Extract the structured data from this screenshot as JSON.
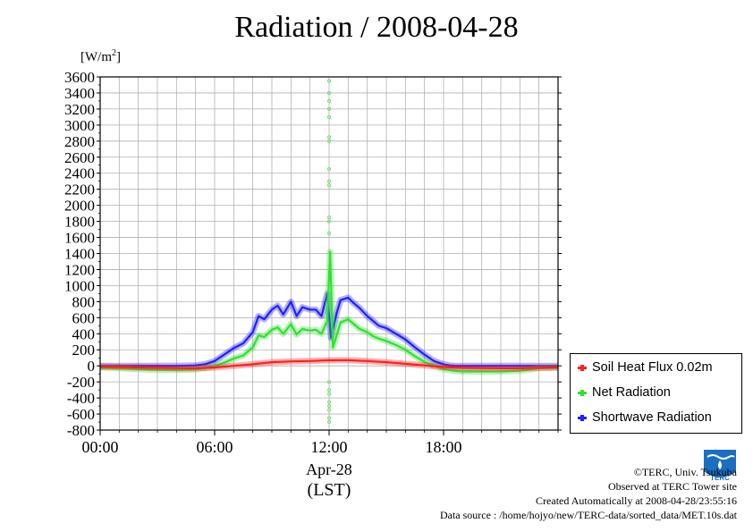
{
  "title": "Radiation / 2008-04-28",
  "unit": {
    "base": "[W/m",
    "sup": "2",
    "close": "]"
  },
  "xaxis": {
    "date_label": "Apr-28",
    "tz_label": "(LST)"
  },
  "legend": [
    {
      "label": "Soil Heat Flux 0.02m",
      "color": "#ff2020"
    },
    {
      "label": "Net Radiation",
      "color": "#30e030"
    },
    {
      "label": "Shortwave Radiation",
      "color": "#2020ff"
    }
  ],
  "footer": {
    "copyright": "©TERC, Univ. Tsukuba",
    "site": "Observed at TERC Tower site",
    "created": "Created Automatically at 2008-04-28/23:55:16",
    "source": "Data source : /home/hojyo/new/TERC-data/sorted_data/MET.10s.dat"
  },
  "logo": {
    "text": "TERC",
    "icon": "terc-logo-icon"
  },
  "chart_data": {
    "type": "line",
    "title": "Radiation / 2008-04-28",
    "ylabel": "[W/m2]",
    "xlabel": "Apr-28 (LST)",
    "ylim": [
      -800,
      3600
    ],
    "xlim": [
      0,
      24
    ],
    "yticks": [
      -800,
      -600,
      -400,
      -200,
      0,
      200,
      400,
      600,
      800,
      1000,
      1200,
      1400,
      1600,
      1800,
      2000,
      2200,
      2400,
      2600,
      2800,
      3000,
      3200,
      3400,
      3600
    ],
    "xticks": [
      {
        "x": 0,
        "label": "00:00"
      },
      {
        "x": 6,
        "label": "06:00"
      },
      {
        "x": 12,
        "label": "12:00"
      },
      {
        "x": 18,
        "label": "18:00"
      }
    ],
    "grid": true,
    "legend_position": "right-bottom",
    "series": [
      {
        "name": "Shortwave Radiation",
        "color": "#2020ff",
        "x": [
          0,
          1,
          2,
          3,
          4,
          5,
          5.5,
          6,
          6.5,
          7,
          7.5,
          8,
          8.3,
          8.6,
          9,
          9.3,
          9.6,
          10,
          10.3,
          10.6,
          11,
          11.3,
          11.6,
          11.9,
          12.1,
          12.4,
          12.6,
          13,
          13.3,
          13.6,
          14,
          14.3,
          14.6,
          15,
          15.5,
          16,
          16.5,
          17,
          17.5,
          18,
          18.3,
          18.6,
          19,
          20,
          21,
          22,
          23,
          24
        ],
        "y": [
          0,
          0,
          0,
          0,
          0,
          5,
          20,
          60,
          140,
          220,
          280,
          420,
          620,
          580,
          700,
          750,
          640,
          800,
          620,
          730,
          700,
          700,
          620,
          900,
          350,
          660,
          820,
          850,
          780,
          720,
          620,
          560,
          500,
          470,
          400,
          330,
          230,
          140,
          60,
          20,
          5,
          0,
          0,
          0,
          0,
          0,
          0,
          0
        ]
      },
      {
        "name": "Net Radiation",
        "color": "#30e030",
        "x": [
          0,
          1,
          2,
          3,
          4,
          5,
          5.5,
          6,
          6.5,
          7,
          7.5,
          8,
          8.3,
          8.6,
          9,
          9.3,
          9.6,
          10,
          10.3,
          10.6,
          11,
          11.3,
          11.6,
          11.9,
          12.05,
          12.2,
          12.6,
          13,
          13.3,
          13.6,
          14,
          14.3,
          14.6,
          15,
          15.5,
          16,
          16.5,
          17,
          17.5,
          18,
          18.5,
          19,
          20,
          21,
          22,
          23,
          24
        ],
        "y": [
          -20,
          -30,
          -40,
          -50,
          -50,
          -45,
          -30,
          0,
          40,
          90,
          130,
          230,
          380,
          360,
          450,
          480,
          400,
          520,
          390,
          460,
          440,
          450,
          400,
          560,
          1420,
          230,
          540,
          580,
          520,
          460,
          420,
          370,
          340,
          310,
          260,
          200,
          120,
          50,
          0,
          -40,
          -60,
          -70,
          -70,
          -70,
          -60,
          -30,
          -20
        ]
      },
      {
        "name": "Soil Heat Flux 0.02m",
        "color": "#ff2020",
        "x": [
          0,
          1,
          2,
          3,
          4,
          5,
          6,
          7,
          8,
          9,
          10,
          11,
          12,
          13,
          14,
          15,
          16,
          17,
          18,
          19,
          20,
          21,
          22,
          23,
          24
        ],
        "y": [
          -10,
          -15,
          -20,
          -25,
          -28,
          -30,
          -20,
          0,
          20,
          45,
          55,
          60,
          70,
          70,
          60,
          45,
          25,
          5,
          -15,
          -25,
          -28,
          -30,
          -30,
          -25,
          -20
        ]
      }
    ],
    "scatter": {
      "name": "Net Radiation spikes",
      "color": "#60e060",
      "x": [
        12.0,
        12.0,
        12.0,
        12.0,
        12.0,
        12.0,
        12.0,
        12.0,
        12.0,
        12.0,
        12.0,
        12.0,
        12.0,
        12.0,
        12.0,
        12.0,
        12.0,
        12.0,
        12.0,
        12.0,
        12.0
      ],
      "y": [
        3550,
        3400,
        3300,
        3200,
        3100,
        2850,
        2800,
        2450,
        2300,
        2250,
        1850,
        1800,
        1650,
        -200,
        -300,
        -350,
        -450,
        -500,
        -550,
        -650,
        -700
      ]
    }
  }
}
